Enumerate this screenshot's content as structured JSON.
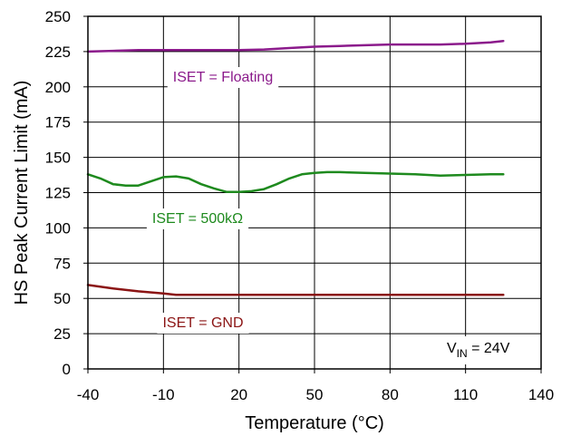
{
  "chart_data": {
    "type": "line",
    "title": "",
    "xlabel": "Temperature (°C)",
    "ylabel": "HS Peak Current Limit (mA)",
    "xlim": [
      -40,
      140
    ],
    "ylim": [
      0,
      250
    ],
    "xticks": [
      -40,
      -10,
      20,
      50,
      80,
      110,
      140
    ],
    "yticks": [
      0,
      25,
      50,
      75,
      100,
      125,
      150,
      175,
      200,
      225,
      250
    ],
    "grid": true,
    "series": [
      {
        "name": "ISET = Floating",
        "color": "#8b1a8b",
        "x": [
          -40,
          -30,
          -20,
          -10,
          0,
          10,
          20,
          30,
          40,
          50,
          60,
          70,
          80,
          90,
          100,
          110,
          120,
          125
        ],
        "y": [
          225,
          225.5,
          226,
          226,
          226,
          226,
          226,
          226.5,
          227.5,
          228.5,
          229,
          229.5,
          230,
          230,
          230,
          230.5,
          231.5,
          232.5
        ]
      },
      {
        "name": "ISET = 500kΩ",
        "color": "#1e8a1e",
        "x": [
          -40,
          -35,
          -30,
          -25,
          -20,
          -15,
          -10,
          -5,
          0,
          5,
          10,
          15,
          20,
          25,
          30,
          35,
          40,
          45,
          50,
          55,
          60,
          70,
          80,
          90,
          100,
          110,
          120,
          125
        ],
        "y": [
          138,
          135,
          131,
          130,
          130,
          133,
          136,
          136.5,
          135,
          131,
          128,
          125.5,
          125.5,
          126,
          127.5,
          131,
          135,
          138,
          139,
          139.5,
          139.5,
          139,
          138.5,
          138,
          137,
          137.5,
          138,
          138
        ]
      },
      {
        "name": "ISET = GND",
        "color": "#8b1414",
        "x": [
          -40,
          -30,
          -20,
          -10,
          -5,
          0,
          20,
          50,
          80,
          110,
          125
        ],
        "y": [
          59.5,
          57,
          55,
          53.5,
          52.5,
          52.5,
          52.5,
          52.5,
          52.5,
          52.5,
          52.5
        ]
      }
    ],
    "annotations": [
      {
        "name": "floating-label",
        "text": "ISET = Floating",
        "color": "#8b1a8b"
      },
      {
        "name": "500k-label",
        "text": "ISET = 500kΩ",
        "color": "#1e8a1e"
      },
      {
        "name": "gnd-label",
        "text": "ISET = GND",
        "color": "#8b1414"
      }
    ],
    "vin_label": {
      "base": "V",
      "sub": "IN",
      "rest": " = 24V"
    }
  }
}
